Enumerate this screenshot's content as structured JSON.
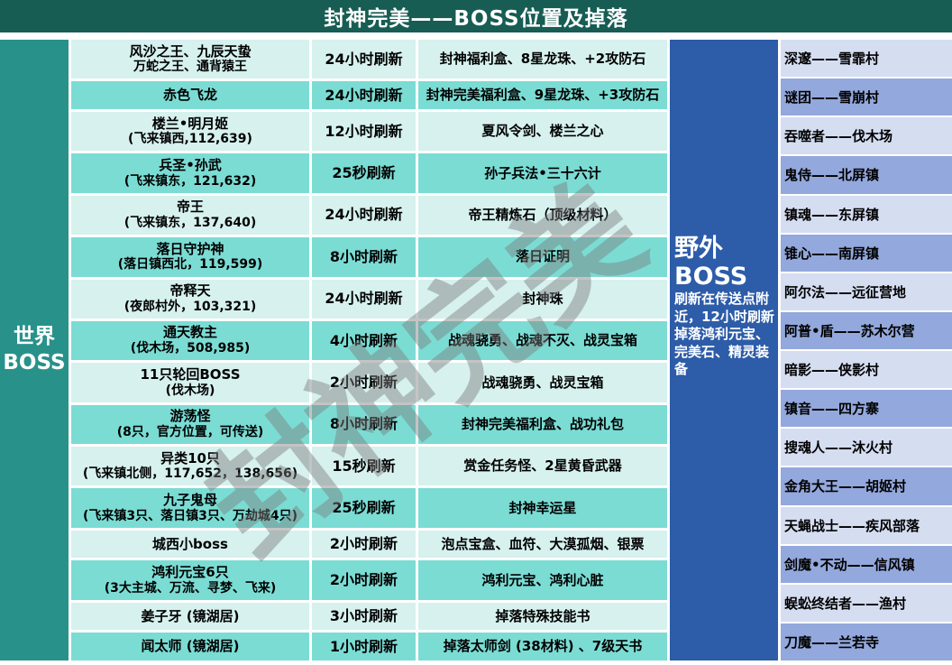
{
  "header": {
    "title": "封神完美——BOSS位置及掉落"
  },
  "world_boss": {
    "label_line1": "世界",
    "label_line2": "BOSS"
  },
  "boss_rows": [
    {
      "name": "风沙之王、九辰天蛰",
      "name2": "万蛇之王、通背猿王",
      "refresh": "24小时刷新",
      "drops": "封神福利盒、8星龙珠、+2攻防石"
    },
    {
      "name": "赤色飞龙",
      "refresh": "24小时刷新",
      "drops": "封神完美福利盒、9星龙珠、+3攻防石"
    },
    {
      "name": "楼兰•明月姬",
      "name2": "(飞来镇西,112,639)",
      "refresh": "12小时刷新",
      "drops": "夏风令剑、楼兰之心"
    },
    {
      "name": "兵圣•孙武",
      "name2": "(飞来镇东，121,632)",
      "refresh": "25秒刷新",
      "drops": "孙子兵法•三十六计"
    },
    {
      "name": "帝王",
      "name2": "(飞来镇东，137,640)",
      "refresh": "24小时刷新",
      "drops": "帝王精炼石（顶级材料）"
    },
    {
      "name": "落日守护神",
      "name2": "(落日镇西北，119,599)",
      "refresh": "8小时刷新",
      "drops": "落日证明"
    },
    {
      "name": "帝释天",
      "name2": "(夜郎村外，103,321)",
      "refresh": "24小时刷新",
      "drops": "封神珠"
    },
    {
      "name": "通天教主",
      "name2": "(伐木场，508,985)",
      "refresh": "4小时刷新",
      "drops": "战魂骁勇、战魂不灭、战灵宝箱"
    },
    {
      "name": "11只轮回BOSS",
      "name2": "(伐木场)",
      "refresh": "2小时刷新",
      "drops": "战魂骁勇、战灵宝箱"
    },
    {
      "name": "游荡怪",
      "name2": "(8只，官方位置，可传送)",
      "refresh": "8小时刷新",
      "drops": "封神完美福利盒、战功礼包"
    },
    {
      "name": "异类10只",
      "name2": "(飞来镇北侧，117,652，138,656)",
      "refresh": "15秒刷新",
      "drops": "赏金任务怪、2星黄昏武器"
    },
    {
      "name": "九子鬼母",
      "name2": "(飞来镇3只、落日镇3只、万劫城4只)",
      "refresh": "25秒刷新",
      "drops": "封神幸运星"
    },
    {
      "name": "城西小boss",
      "refresh": "2小时刷新",
      "drops": "泡点宝盒、血符、大漠孤烟、银票"
    },
    {
      "name": "鸿利元宝6只",
      "name2": "(3大主城、万流、寻梦、飞来)",
      "refresh": "2小时刷新",
      "drops": "鸿利元宝、鸿利心脏"
    },
    {
      "name": "姜子牙 (镜湖居)",
      "refresh": "3小时刷新",
      "drops": "掉落特殊技能书"
    },
    {
      "name": "闻太师 (镜湖居)",
      "refresh": "1小时刷新",
      "drops": "掉落太师剑 (38材料) 、7级天书"
    }
  ],
  "field_boss": {
    "title": "野外BOSS",
    "description": "刷新在传送点附近，12小时刷新掉落鸿利元宝、完美石、精灵装备"
  },
  "field_boss_list": [
    "深邃——雪霏村",
    "谜团——雪崩村",
    "吞噬者——伐木场",
    "鬼侍——北屏镇",
    "镇魂——东屏镇",
    "锥心——南屏镇",
    "阿尔法——远征营地",
    "阿普•盾——苏木尔营",
    "暗影——侠影村",
    "镇音——四方寨",
    "搜魂人——沐火村",
    "金角大王——胡姬村",
    "天蝇战士——疾风部落",
    "剑魔•不动——信风镇",
    "蜈蚣终结者——渔村",
    "刀魔——兰若寺"
  ],
  "watermark": "封神完美",
  "colors": {
    "header_bg": "#175D54",
    "world_bg": "#28928A",
    "row_light": "#D6F1EE",
    "row_teal": "#7BDCD4",
    "field_bg": "#2D5CA8",
    "list_light": "#D5DDF1",
    "list_dark": "#93A8DC",
    "border": "#FFFFFF",
    "text": "#000000"
  }
}
